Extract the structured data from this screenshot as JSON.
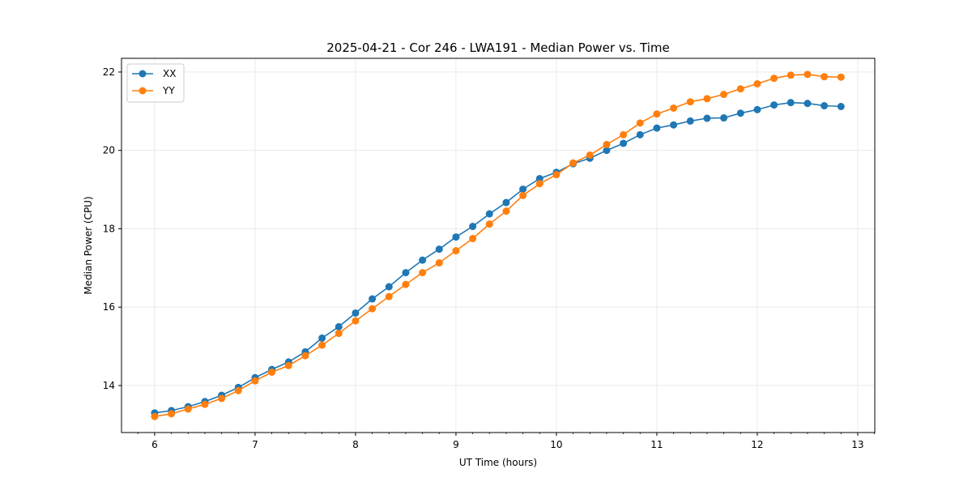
{
  "chart_data": {
    "type": "line",
    "title": "2025-04-21 - Cor 246 - LWA191 - Median Power vs. Time",
    "xlabel": "UT Time (hours)",
    "ylabel": "Median Power (CPU)",
    "xlim": [
      5.67,
      13.17
    ],
    "ylim": [
      12.8,
      22.35
    ],
    "xticks": [
      6,
      7,
      8,
      9,
      10,
      11,
      12,
      13
    ],
    "yticks": [
      14,
      16,
      18,
      20,
      22
    ],
    "grid": true,
    "legend_position": "top-left",
    "x": [
      6.0,
      6.1667,
      6.3333,
      6.5,
      6.6667,
      6.8333,
      7.0,
      7.1667,
      7.3333,
      7.5,
      7.6667,
      7.8333,
      8.0,
      8.1667,
      8.3333,
      8.5,
      8.6667,
      8.8333,
      9.0,
      9.1667,
      9.3333,
      9.5,
      9.6667,
      9.8333,
      10.0,
      10.1667,
      10.3333,
      10.5,
      10.6667,
      10.8333,
      11.0,
      11.1667,
      11.3333,
      11.5,
      11.6667,
      11.8333,
      12.0,
      12.1667,
      12.3333,
      12.5,
      12.6667,
      12.8333
    ],
    "series": [
      {
        "name": "XX",
        "color": "#1f77b4",
        "values": [
          13.3,
          13.36,
          13.46,
          13.59,
          13.75,
          13.95,
          14.2,
          14.41,
          14.6,
          14.86,
          15.21,
          15.5,
          15.85,
          16.21,
          16.52,
          16.88,
          17.2,
          17.48,
          17.79,
          18.06,
          18.38,
          18.67,
          19.01,
          19.28,
          19.44,
          19.66,
          19.8,
          20.0,
          20.18,
          20.4,
          20.57,
          20.65,
          20.75,
          20.82,
          20.83,
          20.95,
          21.04,
          21.16,
          21.22,
          21.2,
          21.14,
          21.12
        ]
      },
      {
        "name": "YY",
        "color": "#ff7f0e",
        "values": [
          13.21,
          13.28,
          13.4,
          13.52,
          13.67,
          13.87,
          14.12,
          14.34,
          14.51,
          14.76,
          15.03,
          15.33,
          15.65,
          15.96,
          16.27,
          16.58,
          16.88,
          17.13,
          17.44,
          17.75,
          18.12,
          18.45,
          18.85,
          19.15,
          19.38,
          19.68,
          19.88,
          20.15,
          20.4,
          20.7,
          20.93,
          21.08,
          21.24,
          21.32,
          21.43,
          21.57,
          21.7,
          21.84,
          21.92,
          21.94,
          21.88,
          21.87
        ]
      }
    ]
  }
}
